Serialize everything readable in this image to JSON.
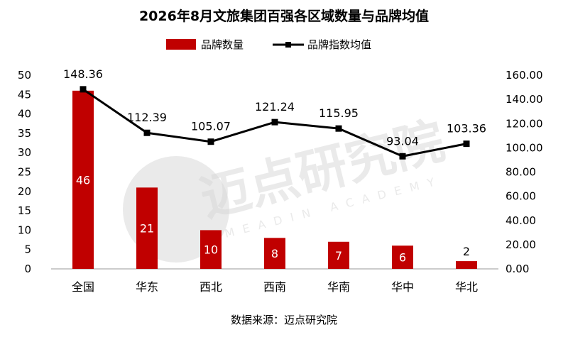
{
  "title": "2026年8月文旅集团百强各区域数量与品牌均值",
  "source": "数据来源：迈点研究院",
  "watermark": {
    "cn": "迈点研究院",
    "en": "MEADIN ACADEMY"
  },
  "colors": {
    "bar": "#c00000",
    "line": "#000000",
    "axis": "#999999"
  },
  "chart_data": {
    "type": "bar",
    "categories": [
      "全国",
      "华东",
      "西北",
      "西南",
      "华南",
      "华中",
      "华北"
    ],
    "series": [
      {
        "name": "品牌数量",
        "type": "bar",
        "axis": "left",
        "values": [
          46,
          21,
          10,
          8,
          7,
          6,
          2
        ]
      },
      {
        "name": "品牌指数均值",
        "type": "line",
        "axis": "right",
        "values": [
          148.36,
          112.39,
          105.07,
          121.24,
          115.95,
          93.04,
          103.36
        ]
      }
    ],
    "left_axis": {
      "min": 0,
      "max": 50,
      "step": 5
    },
    "right_axis": {
      "min": 0,
      "max": 160,
      "step": 20,
      "decimals": 2
    },
    "legend_position": "top-center",
    "grid": false
  }
}
